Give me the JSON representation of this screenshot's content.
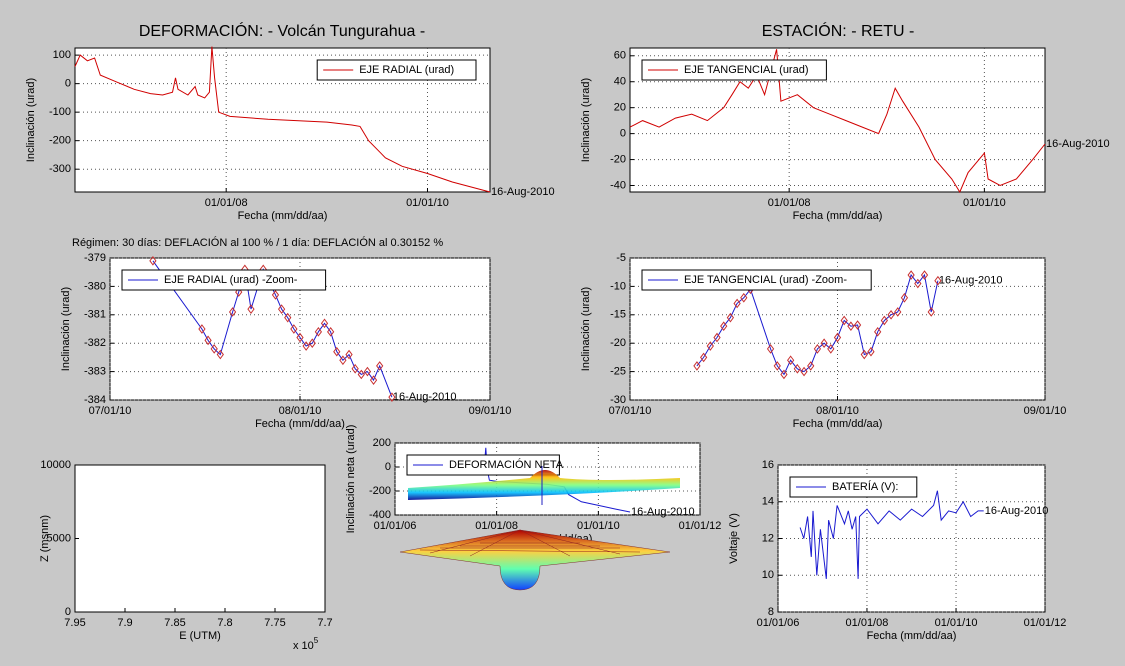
{
  "titles": [
    "DEFORMACIÓN: - Volcán Tungurahua -",
    "ESTACIÓN: - RETU -"
  ],
  "note": "Régimen: 30 días: DEFLACIÓN al 100 % / 1 día: DEFLACIÓN al 0.30152 %",
  "chart_data": [
    {
      "type": "line",
      "grid": true,
      "legend": "upper right",
      "end_label": "16-Aug-2010",
      "x_label": "Fecha (mm/dd/aa)",
      "y_label": "Inclinación (urad)",
      "xlim": [
        "2006-07-01",
        "2010-08-16"
      ],
      "xticks": [
        {
          "value": "2008-01-01",
          "label": "01/01/08"
        },
        {
          "value": "2010-01-01",
          "label": "01/01/10"
        }
      ],
      "ylim": [
        -380,
        125
      ],
      "yticks": [
        -300,
        -200,
        -100,
        0,
        100
      ],
      "x": [
        "2006-07-01",
        "2006-07-20",
        "2006-08-15",
        "2006-09-10",
        "2006-10-01",
        "2006-12-01",
        "2007-02-01",
        "2007-04-01",
        "2007-05-15",
        "2007-06-20",
        "2007-07-01",
        "2007-07-10",
        "2007-08-15",
        "2007-09-10",
        "2007-09-20",
        "2007-10-15",
        "2007-11-01",
        "2007-11-10",
        "2007-11-20",
        "2007-12-05",
        "2008-01-15",
        "2008-06-01",
        "2009-01-01",
        "2009-04-01",
        "2009-05-01",
        "2009-06-01",
        "2009-08-01",
        "2009-10-01",
        "2010-01-01",
        "2010-04-01",
        "2010-08-16"
      ],
      "series": [
        {
          "name": "EJE RADIAL (urad)",
          "color": "#d00000",
          "values": [
            60,
            100,
            80,
            90,
            30,
            5,
            -20,
            -35,
            -40,
            -30,
            20,
            -20,
            -40,
            -10,
            -40,
            -50,
            -30,
            130,
            20,
            -100,
            -115,
            -125,
            -135,
            -145,
            -150,
            -200,
            -260,
            -290,
            -315,
            -345,
            -380
          ]
        }
      ]
    },
    {
      "type": "line",
      "grid": true,
      "legend": "upper left",
      "end_label": "16-Aug-2010",
      "x_label": "Fecha (mm/dd/aa)",
      "y_label": "Inclinación (urad)",
      "xlim": [
        "2006-05-15",
        "2010-08-16"
      ],
      "xticks": [
        {
          "value": "2008-01-01",
          "label": "01/01/08"
        },
        {
          "value": "2010-01-01",
          "label": "01/01/10"
        }
      ],
      "ylim": [
        -45,
        66
      ],
      "yticks": [
        -40,
        -20,
        0,
        20,
        40,
        60
      ],
      "x": [
        "2006-05-15",
        "2006-07-01",
        "2006-09-01",
        "2006-11-01",
        "2007-01-01",
        "2007-03-01",
        "2007-05-01",
        "2007-06-01",
        "2007-07-01",
        "2007-08-01",
        "2007-09-01",
        "2007-10-01",
        "2007-11-15",
        "2007-12-01",
        "2008-02-01",
        "2008-04-01",
        "2008-06-01",
        "2008-08-01",
        "2008-10-01",
        "2008-12-01",
        "2009-01-01",
        "2009-02-01",
        "2009-03-01",
        "2009-05-01",
        "2009-07-01",
        "2009-09-01",
        "2009-10-01",
        "2009-11-01",
        "2010-01-01",
        "2010-01-15",
        "2010-03-01",
        "2010-05-01",
        "2010-07-01",
        "2010-08-16"
      ],
      "series": [
        {
          "name": "EJE TANGENCIAL (urad)",
          "color": "#d00000",
          "values": [
            5,
            10,
            5,
            12,
            15,
            10,
            20,
            30,
            40,
            35,
            45,
            30,
            65,
            25,
            30,
            20,
            15,
            10,
            5,
            0,
            15,
            35,
            25,
            5,
            -20,
            -35,
            -45,
            -30,
            -15,
            -35,
            -40,
            -35,
            -20,
            -8
          ]
        }
      ]
    },
    {
      "type": "line",
      "grid": true,
      "legend": "upper left",
      "end_label": "16-Aug-2010",
      "marker": "diamond",
      "marker_color": "#c83030",
      "x_label": "Fecha (mm/dd/aa)",
      "y_label": "Inclinación (urad)",
      "xlim": [
        "2010-07-01",
        "2010-09-01"
      ],
      "xticks": [
        {
          "value": "2010-07-01",
          "label": "07/01/10"
        },
        {
          "value": "2010-08-01",
          "label": "08/01/10"
        },
        {
          "value": "2010-09-01",
          "label": "09/01/10"
        }
      ],
      "ylim": [
        -384,
        -379
      ],
      "yticks": [
        -384,
        -383,
        -382,
        -381,
        -380,
        -379
      ],
      "x": [
        "2010-07-08",
        "2010-07-16",
        "2010-07-17",
        "2010-07-18",
        "2010-07-19",
        "2010-07-21",
        "2010-07-22",
        "2010-07-23",
        "2010-07-24",
        "2010-07-26",
        "2010-07-28",
        "2010-07-29",
        "2010-07-30",
        "2010-07-31",
        "2010-08-01",
        "2010-08-02",
        "2010-08-03",
        "2010-08-04",
        "2010-08-05",
        "2010-08-06",
        "2010-08-07",
        "2010-08-08",
        "2010-08-09",
        "2010-08-10",
        "2010-08-11",
        "2010-08-12",
        "2010-08-13",
        "2010-08-14",
        "2010-08-16"
      ],
      "series": [
        {
          "name": "EJE RADIAL (urad) -Zoom-",
          "color": "#1a1ad0",
          "values": [
            -379.1,
            -381.5,
            -381.9,
            -382.2,
            -382.4,
            -380.9,
            -380.2,
            -379.4,
            -380.8,
            -379.4,
            -380.3,
            -380.8,
            -381.1,
            -381.5,
            -381.8,
            -382.1,
            -382.0,
            -381.6,
            -381.3,
            -381.6,
            -382.3,
            -382.6,
            -382.4,
            -382.9,
            -383.1,
            -383.0,
            -383.3,
            -382.8,
            -383.9
          ]
        }
      ]
    },
    {
      "type": "line",
      "grid": true,
      "legend": "upper left",
      "end_label": "16-Aug-2010",
      "marker": "diamond",
      "marker_color": "#c83030",
      "x_label": "Fecha (mm/dd/aa)",
      "y_label": "Inclinación (urad)",
      "xlim": [
        "2010-07-01",
        "2010-09-01"
      ],
      "xticks": [
        {
          "value": "2010-07-01",
          "label": "07/01/10"
        },
        {
          "value": "2010-08-01",
          "label": "08/01/10"
        },
        {
          "value": "2010-09-01",
          "label": "09/01/10"
        }
      ],
      "ylim": [
        -30,
        -5
      ],
      "yticks": [
        -30,
        -25,
        -20,
        -15,
        -10,
        -5
      ],
      "x": [
        "2010-07-11",
        "2010-07-12",
        "2010-07-13",
        "2010-07-14",
        "2010-07-15",
        "2010-07-16",
        "2010-07-17",
        "2010-07-18",
        "2010-07-19",
        "2010-07-22",
        "2010-07-23",
        "2010-07-24",
        "2010-07-25",
        "2010-07-26",
        "2010-07-27",
        "2010-07-28",
        "2010-07-29",
        "2010-07-30",
        "2010-07-31",
        "2010-08-01",
        "2010-08-02",
        "2010-08-03",
        "2010-08-04",
        "2010-08-05",
        "2010-08-06",
        "2010-08-07",
        "2010-08-08",
        "2010-08-09",
        "2010-08-10",
        "2010-08-11",
        "2010-08-12",
        "2010-08-13",
        "2010-08-14",
        "2010-08-15",
        "2010-08-16"
      ],
      "series": [
        {
          "name": "EJE TANGENCIAL (urad) -Zoom-",
          "color": "#1a1ad0",
          "values": [
            -24,
            -22.5,
            -20.5,
            -19,
            -17,
            -15.5,
            -13,
            -12,
            -10.5,
            -21,
            -24,
            -25.5,
            -23,
            -24.5,
            -25,
            -24,
            -21,
            -20,
            -21,
            -19,
            -16,
            -17,
            -16.8,
            -22,
            -21.5,
            -18,
            -16,
            -15,
            -14.5,
            -12,
            -8,
            -9.5,
            -8,
            -14.5,
            -9
          ]
        }
      ]
    },
    {
      "type": "line",
      "grid": true,
      "legend": "upper left",
      "end_label": "16-Aug-2010",
      "x_label": "Fecha (mm/dd/aa)",
      "y_label": "Inclinación neta (urad)",
      "xlim": [
        "2006-01-01",
        "2012-01-01"
      ],
      "xticks": [
        {
          "value": "2006-01-01",
          "label": "01/01/06"
        },
        {
          "value": "2008-01-01",
          "label": "01/01/08"
        },
        {
          "value": "2010-01-01",
          "label": "01/01/10"
        },
        {
          "value": "2012-01-01",
          "label": "01/01/12"
        }
      ],
      "ylim": [
        -400,
        200
      ],
      "yticks": [
        -400,
        -200,
        0,
        200
      ],
      "x": [
        "2006-06-01",
        "2006-07-15",
        "2006-09-01",
        "2006-11-01",
        "2007-02-01",
        "2007-05-01",
        "2007-06-01",
        "2007-06-15",
        "2007-09-01",
        "2007-10-01",
        "2007-10-15",
        "2007-10-25",
        "2007-11-10",
        "2008-01-01",
        "2008-06-01",
        "2009-01-01",
        "2009-05-01",
        "2009-06-01",
        "2009-09-01",
        "2010-01-01",
        "2010-05-01",
        "2010-08-16"
      ],
      "series": [
        {
          "name": "DEFORMACIÓN NETA",
          "color": "#1a1ad0",
          "values": [
            80,
            40,
            60,
            0,
            -20,
            -35,
            30,
            -30,
            -45,
            -40,
            160,
            -20,
            -110,
            -120,
            -130,
            -145,
            -165,
            -230,
            -290,
            -320,
            -350,
            -375
          ]
        }
      ]
    },
    {
      "type": "surface",
      "x_label": "E (UTM)",
      "y_label": "Z (msnm)",
      "xlim": [
        7.95,
        7.7
      ],
      "xticks": [
        7.95,
        7.9,
        7.85,
        7.8,
        7.75,
        7.7
      ],
      "x_multiplier": {
        "base": "x 10",
        "exponent": "5"
      },
      "ylim": [
        0,
        10000
      ],
      "yticks": [
        0,
        5000,
        10000
      ]
    },
    {
      "type": "line",
      "grid": true,
      "legend": "upper left",
      "end_label": "16-Aug-2010",
      "x_label": "Fecha (mm/dd/aa)",
      "y_label": "Voltaje (V)",
      "xlim": [
        "2006-01-01",
        "2012-01-01"
      ],
      "xticks": [
        {
          "value": "2006-01-01",
          "label": "01/01/06"
        },
        {
          "value": "2008-01-01",
          "label": "01/01/08"
        },
        {
          "value": "2010-01-01",
          "label": "01/01/10"
        },
        {
          "value": "2012-01-01",
          "label": "01/01/12"
        }
      ],
      "ylim": [
        8,
        16
      ],
      "yticks": [
        8,
        10,
        12,
        14,
        16
      ],
      "x": [
        "2006-07-01",
        "2006-08-01",
        "2006-09-01",
        "2006-10-01",
        "2006-10-15",
        "2006-11-15",
        "2006-12-15",
        "2007-02-01",
        "2007-02-20",
        "2007-04-01",
        "2007-05-01",
        "2007-07-01",
        "2007-08-01",
        "2007-09-01",
        "2007-10-01",
        "2007-10-20",
        "2007-11-01",
        "2008-01-01",
        "2008-04-01",
        "2008-07-01",
        "2008-10-01",
        "2009-01-01",
        "2009-04-01",
        "2009-07-01",
        "2009-08-01",
        "2009-09-01",
        "2009-11-01",
        "2010-01-01",
        "2010-03-01",
        "2010-05-01",
        "2010-07-01",
        "2010-08-16"
      ],
      "series": [
        {
          "name": "BATERÍA (V):",
          "color": "#1a1ad0",
          "values": [
            12.6,
            12.0,
            13.2,
            11.0,
            13.5,
            10.0,
            12.5,
            9.8,
            13.0,
            12.0,
            13.8,
            12.8,
            13.5,
            12.5,
            13.2,
            9.8,
            13.2,
            13.6,
            12.8,
            13.5,
            13.0,
            13.6,
            13.2,
            13.8,
            14.6,
            13.0,
            13.5,
            13.4,
            14.0,
            13.2,
            13.5,
            13.5
          ]
        }
      ]
    }
  ]
}
